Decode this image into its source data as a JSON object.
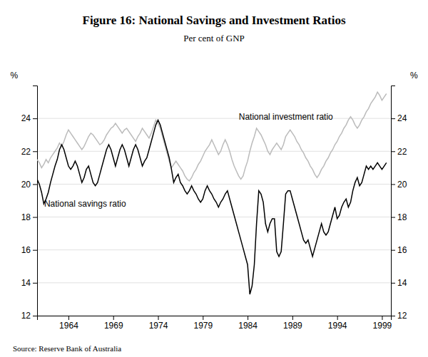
{
  "chart_data": {
    "type": "line",
    "title": "Figure 16: National Savings and Investment Ratios",
    "subtitle": "Per cent of GNP",
    "source": "Source: Reserve Bank of Australia",
    "ylabel": "%",
    "y2label": "%",
    "xlim": [
      1960.5,
      2000.0
    ],
    "xticks": [
      1964,
      1969,
      1974,
      1979,
      1984,
      1989,
      1994,
      1999
    ],
    "ylim": [
      12,
      26
    ],
    "yticks": [
      12,
      14,
      16,
      18,
      20,
      22,
      24
    ],
    "y2lim": [
      12,
      26
    ],
    "y2ticks": [
      12,
      14,
      16,
      18,
      20,
      22,
      24
    ],
    "grid": true,
    "x": [
      1960.5,
      1960.75,
      1961.0,
      1961.25,
      1961.5,
      1961.75,
      1962.0,
      1962.25,
      1962.5,
      1962.75,
      1963.0,
      1963.25,
      1963.5,
      1963.75,
      1964.0,
      1964.25,
      1964.5,
      1964.75,
      1965.0,
      1965.25,
      1965.5,
      1965.75,
      1966.0,
      1966.25,
      1966.5,
      1966.75,
      1967.0,
      1967.25,
      1967.5,
      1967.75,
      1968.0,
      1968.25,
      1968.5,
      1968.75,
      1969.0,
      1969.25,
      1969.5,
      1969.75,
      1970.0,
      1970.25,
      1970.5,
      1970.75,
      1971.0,
      1971.25,
      1971.5,
      1971.75,
      1972.0,
      1972.25,
      1972.5,
      1972.75,
      1973.0,
      1973.25,
      1973.5,
      1973.75,
      1974.0,
      1974.25,
      1974.5,
      1974.75,
      1975.0,
      1975.25,
      1975.5,
      1975.75,
      1976.0,
      1976.25,
      1976.5,
      1976.75,
      1977.0,
      1977.25,
      1977.5,
      1977.75,
      1978.0,
      1978.25,
      1978.5,
      1978.75,
      1979.0,
      1979.25,
      1979.5,
      1979.75,
      1980.0,
      1980.25,
      1980.5,
      1980.75,
      1981.0,
      1981.25,
      1981.5,
      1981.75,
      1982.0,
      1982.25,
      1982.5,
      1982.75,
      1983.0,
      1983.25,
      1983.5,
      1983.75,
      1984.0,
      1984.25,
      1984.5,
      1984.75,
      1985.0,
      1985.25,
      1985.5,
      1985.75,
      1986.0,
      1986.25,
      1986.5,
      1986.75,
      1987.0,
      1987.25,
      1987.5,
      1987.75,
      1988.0,
      1988.25,
      1988.5,
      1988.75,
      1989.0,
      1989.25,
      1989.5,
      1989.75,
      1990.0,
      1990.25,
      1990.5,
      1990.75,
      1991.0,
      1991.25,
      1991.5,
      1991.75,
      1992.0,
      1992.25,
      1992.5,
      1992.75,
      1993.0,
      1993.25,
      1993.5,
      1993.75,
      1994.0,
      1994.25,
      1994.5,
      1994.75,
      1995.0,
      1995.25,
      1995.5,
      1995.75,
      1996.0,
      1996.25,
      1996.5,
      1996.75,
      1997.0,
      1997.25,
      1997.5,
      1997.75,
      1998.0,
      1998.25,
      1998.5,
      1998.75,
      1999.0,
      1999.25,
      1999.5
    ],
    "series": [
      {
        "name": "National investment ratio",
        "color": "#bbbbbb",
        "values": [
          21.5,
          21.3,
          21.0,
          21.2,
          21.5,
          21.3,
          21.6,
          21.8,
          22.0,
          22.2,
          22.5,
          22.3,
          22.6,
          23.0,
          23.3,
          23.1,
          22.9,
          22.7,
          22.5,
          22.3,
          22.1,
          22.3,
          22.6,
          22.9,
          23.1,
          23.0,
          22.8,
          22.6,
          22.4,
          22.5,
          22.7,
          23.0,
          23.2,
          23.4,
          23.5,
          23.7,
          23.5,
          23.3,
          23.1,
          23.3,
          23.4,
          23.2,
          23.0,
          22.8,
          22.6,
          22.9,
          23.1,
          23.4,
          23.2,
          23.0,
          22.8,
          23.1,
          23.5,
          23.9,
          23.7,
          23.4,
          22.9,
          22.4,
          21.9,
          21.4,
          21.0,
          21.2,
          21.4,
          21.2,
          21.0,
          20.8,
          20.5,
          20.3,
          20.2,
          20.4,
          20.7,
          20.9,
          21.2,
          21.4,
          21.7,
          22.0,
          22.2,
          22.4,
          22.7,
          22.4,
          22.1,
          21.8,
          22.0,
          22.4,
          22.7,
          22.4,
          22.0,
          21.5,
          21.1,
          20.8,
          20.5,
          20.3,
          20.5,
          21.0,
          21.4,
          22.0,
          22.5,
          22.9,
          23.4,
          23.2,
          23.0,
          22.7,
          22.4,
          22.0,
          21.8,
          22.1,
          22.3,
          22.5,
          22.3,
          22.1,
          22.4,
          22.9,
          23.1,
          23.3,
          23.1,
          22.9,
          22.6,
          22.4,
          22.1,
          21.9,
          21.6,
          21.4,
          21.1,
          20.9,
          20.6,
          20.4,
          20.6,
          20.9,
          21.1,
          21.4,
          21.6,
          21.9,
          22.1,
          22.4,
          22.6,
          22.9,
          23.1,
          23.4,
          23.6,
          23.9,
          24.1,
          23.9,
          23.6,
          23.4,
          23.6,
          23.9,
          24.1,
          24.4,
          24.6,
          24.9,
          25.1,
          25.3,
          25.6,
          25.4,
          25.1,
          25.3,
          25.5
        ]
      },
      {
        "name": "National savings ratio",
        "color": "#000000",
        "values": [
          20.3,
          20.0,
          19.5,
          18.8,
          19.1,
          19.5,
          20.1,
          20.6,
          21.1,
          21.5,
          22.1,
          22.4,
          22.1,
          21.6,
          21.1,
          20.9,
          21.1,
          21.4,
          21.1,
          20.6,
          20.1,
          20.4,
          20.9,
          21.1,
          20.6,
          20.1,
          19.9,
          20.1,
          20.6,
          21.1,
          21.6,
          22.1,
          22.4,
          22.1,
          21.6,
          21.1,
          21.6,
          22.1,
          22.4,
          22.1,
          21.6,
          21.1,
          21.6,
          22.1,
          22.4,
          22.1,
          21.6,
          21.1,
          21.4,
          21.6,
          22.1,
          22.6,
          23.1,
          23.6,
          23.9,
          23.6,
          23.1,
          22.6,
          22.1,
          21.6,
          20.9,
          20.1,
          20.4,
          20.6,
          20.1,
          19.9,
          19.6,
          19.4,
          19.6,
          19.9,
          19.6,
          19.4,
          19.1,
          18.9,
          19.1,
          19.6,
          19.9,
          19.6,
          19.4,
          19.1,
          18.9,
          18.6,
          18.9,
          19.1,
          19.4,
          19.6,
          19.1,
          18.6,
          18.1,
          17.6,
          17.1,
          16.6,
          16.1,
          15.6,
          15.1,
          13.3,
          13.8,
          15.1,
          17.6,
          19.6,
          19.4,
          18.9,
          17.6,
          17.1,
          17.6,
          17.9,
          17.9,
          15.9,
          15.6,
          15.9,
          17.6,
          19.4,
          19.6,
          19.6,
          19.1,
          18.6,
          18.1,
          17.6,
          17.1,
          16.6,
          16.4,
          16.6,
          16.1,
          15.6,
          16.1,
          16.6,
          17.1,
          17.6,
          17.1,
          16.9,
          17.1,
          17.6,
          18.1,
          18.6,
          17.9,
          18.1,
          18.6,
          18.9,
          19.1,
          18.6,
          18.9,
          19.6,
          20.1,
          20.4,
          19.9,
          20.1,
          20.6,
          21.1,
          20.9,
          21.1,
          20.9,
          21.1,
          21.3,
          21.1,
          20.9,
          21.1,
          21.3
        ]
      }
    ]
  }
}
